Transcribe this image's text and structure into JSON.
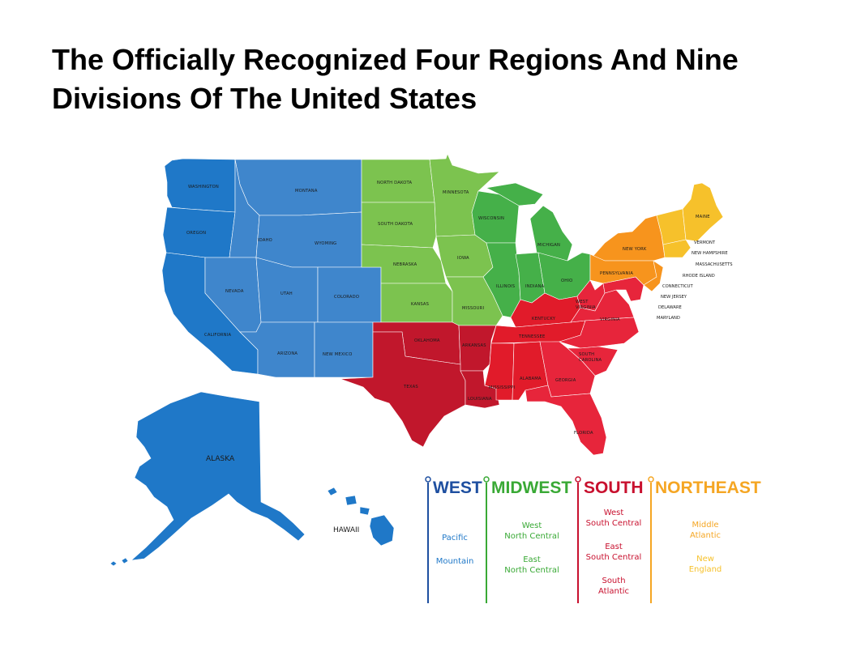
{
  "title_lines": [
    "The Officially Recognized Four Regions And Nine",
    "Divisions Of The United States"
  ],
  "colors": {
    "west": "#2a7fce",
    "west_pacific": "#1f78c8",
    "west_mountain": "#3f86cc",
    "midwest": "#3fae49",
    "midwest_west_north_central": "#7cc34f",
    "midwest_east_north_central": "#45b049",
    "south": "#c8102e",
    "south_west_south_central": "#c1172c",
    "south_east_south_central": "#e11b2a",
    "south_atlantic": "#e7253b",
    "northeast": "#f29a1f",
    "northeast_middle_atlantic": "#f7941d",
    "northeast_new_england": "#f6c12b",
    "legend_west": "#1e4fa0",
    "legend_midwest": "#39a935",
    "legend_south": "#c8102e",
    "legend_northeast": "#f5a623"
  },
  "states": {
    "washington": "WASHINGTON",
    "oregon": "OREGON",
    "california": "CALIFORNIA",
    "montana": "MONTANA",
    "idaho": "IDAHO",
    "wyoming": "WYOMING",
    "nevada": "NEVADA",
    "utah": "UTAH",
    "colorado": "COLORADO",
    "arizona": "ARIZONA",
    "new_mexico": "NEW MEXICO",
    "north_dakota": "NORTH DAKOTA",
    "south_dakota": "SOUTH DAKOTA",
    "nebraska": "NEBRASKA",
    "kansas": "KANSAS",
    "minnesota": "MINNESOTA",
    "iowa": "IOWA",
    "missouri": "MISSOURI",
    "wisconsin": "WISCONSIN",
    "michigan": "MICHIGAN",
    "illinois": "ILLINOIS",
    "indiana": "INDIANA",
    "ohio": "OHIO",
    "oklahoma": "OKLAHOMA",
    "texas": "TEXAS",
    "arkansas": "ARKANSAS",
    "louisiana": "LOUISIANA",
    "kentucky": "KENTUCKY",
    "tennessee": "TENNESSEE",
    "mississippi": "MISSISSIPPI",
    "alabama": "ALABAMA",
    "west_virginia_1": "WEST",
    "west_virginia_2": "VIRGINIA",
    "virginia": "VIRGINIA",
    "south_carolina_1": "SOUTH",
    "south_carolina_2": "CAROLINA",
    "georgia": "GEORGIA",
    "florida": "FLORIDA",
    "new_york": "NEW YORK",
    "pennsylvania": "PENNSYLVANIA",
    "maine": "MAINE",
    "vermont": "VERMONT",
    "new_hampshire": "NEW HAMPSHIRE",
    "massachusetts": "MASSACHUSETTS",
    "rhode_island": "RHODE ISLAND",
    "connecticut": "CONNECTICUT",
    "new_jersey": "NEW JERSEY",
    "delaware": "DELAWARE",
    "maryland": "MARYLAND",
    "alaska": "ALASKA",
    "hawaii": "HAWAII"
  },
  "legend": {
    "west": {
      "label": "WEST",
      "divisions": [
        "Pacific",
        "Mountain"
      ]
    },
    "midwest": {
      "label": "MIDWEST",
      "divisions": [
        [
          "West",
          "North Central"
        ],
        [
          "East",
          "North Central"
        ]
      ]
    },
    "south": {
      "label": "SOUTH",
      "divisions": [
        [
          "West",
          "South Central"
        ],
        [
          "East",
          "South Central"
        ],
        [
          "South",
          "Atlantic"
        ]
      ]
    },
    "northeast": {
      "label": "NORTHEAST",
      "divisions": [
        [
          "Middle",
          "Atlantic"
        ],
        [
          "New",
          "England"
        ]
      ]
    }
  }
}
